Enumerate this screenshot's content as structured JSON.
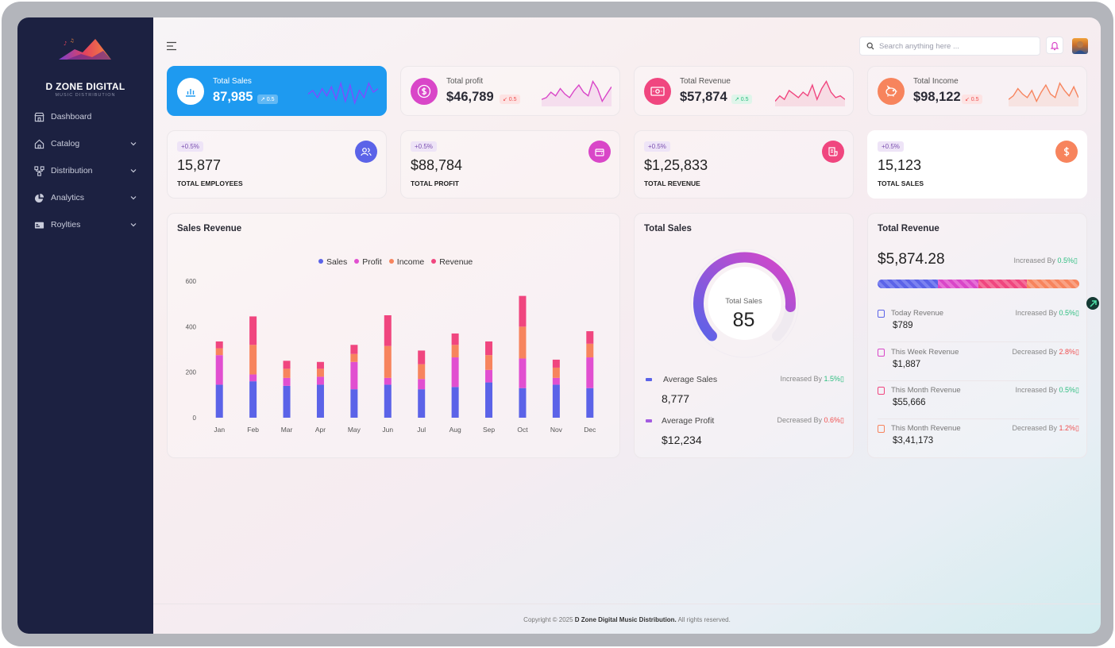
{
  "brand": {
    "title": "D ZONE DIGITAL",
    "subtitle": "MUSIC DISTRIBUTION"
  },
  "sidebar": {
    "items": [
      {
        "label": "Dashboard",
        "icon": "store-icon",
        "has_chevron": false
      },
      {
        "label": "Catalog",
        "icon": "home-icon",
        "has_chevron": true
      },
      {
        "label": "Distribution",
        "icon": "network-icon",
        "has_chevron": true
      },
      {
        "label": "Analytics",
        "icon": "pie-chart-icon",
        "has_chevron": true
      },
      {
        "label": "Roylties",
        "icon": "card-icon",
        "has_chevron": true
      }
    ]
  },
  "header": {
    "search_placeholder": "Search anything here ..."
  },
  "kpis": [
    {
      "label": "Total Sales",
      "value": "87,985",
      "badge": "↗ 0.5",
      "trend": "up",
      "icon": "bar-chart-icon",
      "accent": "#1e9af0",
      "spark": [
        18,
        14,
        22,
        12,
        20,
        10,
        24,
        6,
        26,
        8,
        28,
        14,
        22,
        6,
        16,
        12
      ]
    },
    {
      "label": "Total profit",
      "value": "$46,789",
      "badge": "↙ 0.5",
      "trend": "down",
      "icon": "dollar-icon",
      "accent": "#d946c8",
      "spark": [
        24,
        22,
        16,
        20,
        12,
        18,
        22,
        14,
        8,
        16,
        20,
        4,
        12,
        26,
        18,
        10
      ]
    },
    {
      "label": "Total Revenue",
      "value": "$57,874",
      "badge": "↗ 0.5",
      "trend": "up",
      "icon": "banknote-icon",
      "accent": "#f0467f",
      "spark": [
        26,
        20,
        24,
        14,
        18,
        22,
        16,
        20,
        8,
        24,
        12,
        4,
        16,
        22,
        20,
        24
      ]
    },
    {
      "label": "Total Income",
      "value": "$98,122",
      "badge": "↙ 0.5",
      "trend": "down",
      "icon": "piggy-bank-icon",
      "accent": "#f7845d",
      "spark": [
        24,
        20,
        12,
        18,
        22,
        14,
        26,
        16,
        8,
        18,
        22,
        6,
        14,
        20,
        10,
        22
      ]
    }
  ],
  "stats": [
    {
      "pill": "+0.5%",
      "value": "15,877",
      "label": "TOTAL EMPLOYEES",
      "icon": "users-icon",
      "accent": "#5b63e8"
    },
    {
      "pill": "+0.5%",
      "value": "$88,784",
      "label": "TOTAL PROFIT",
      "icon": "wallet-icon",
      "accent": "#d946c8"
    },
    {
      "pill": "+0.5%",
      "value": "$1,25,833",
      "label": "TOTAL REVENUE",
      "icon": "receipt-icon",
      "accent": "#f0467f"
    },
    {
      "pill": "+0.5%",
      "value": "15,123",
      "label": "TOTAL SALES",
      "icon": "dollar-icon",
      "accent": "#f7845d"
    }
  ],
  "sales_revenue": {
    "title": "Sales Revenue",
    "chart_data": {
      "type": "bar",
      "stacked": true,
      "categories": [
        "Jan",
        "Feb",
        "Mar",
        "Apr",
        "May",
        "Jun",
        "Jul",
        "Aug",
        "Sep",
        "Oct",
        "Nov",
        "Dec"
      ],
      "series": [
        {
          "name": "Sales",
          "color": "#5b63e8",
          "values": [
            145,
            160,
            140,
            145,
            125,
            145,
            125,
            135,
            155,
            130,
            145,
            130
          ]
        },
        {
          "name": "Profit",
          "color": "#e14fd0",
          "values": [
            130,
            30,
            35,
            35,
            120,
            30,
            45,
            130,
            55,
            130,
            30,
            135
          ]
        },
        {
          "name": "Income",
          "color": "#f7845d",
          "values": [
            30,
            130,
            40,
            35,
            35,
            140,
            65,
            55,
            65,
            140,
            45,
            60
          ]
        },
        {
          "name": "Revenue",
          "color": "#f0467f",
          "values": [
            30,
            125,
            35,
            30,
            40,
            135,
            60,
            50,
            60,
            135,
            35,
            55
          ]
        }
      ],
      "ylim": [
        0,
        600
      ],
      "yticks": [
        "600",
        "400",
        "200",
        "0"
      ],
      "legend_position": "top-center",
      "grid": false
    }
  },
  "total_sales": {
    "title": "Total Sales",
    "gauge_label": "Total Sales",
    "gauge_value": "85",
    "gauge_percent": 85,
    "rows": [
      {
        "name": "Average Sales",
        "value": "8,777",
        "status_text": "Increased By",
        "change": "1.5%",
        "trend": "up",
        "color": "#5b63e8"
      },
      {
        "name": "Average Profit",
        "value": "$12,234",
        "status_text": "Decreased By",
        "change": "0.6%",
        "trend": "down",
        "color": "#a35be0"
      }
    ]
  },
  "total_revenue": {
    "title": "Total Revenue",
    "value": "$5,874.28",
    "status_text": "Increased By",
    "change": "0.5%",
    "rows": [
      {
        "name": "Today Revenue",
        "value": "$789",
        "status_text": "Increased By",
        "change": "0.5%",
        "trend": "up",
        "color": "#5b63e8"
      },
      {
        "name": "This Week Revenue",
        "value": "$1,887",
        "status_text": "Decreased By",
        "change": "2.8%",
        "trend": "down",
        "color": "#d946c8"
      },
      {
        "name": "This Month Revenue",
        "value": "$55,666",
        "status_text": "Increased By",
        "change": "0.5%",
        "trend": "up",
        "color": "#f0467f"
      },
      {
        "name": "This Month Revenue",
        "value": "$3,41,173",
        "status_text": "Decreased By",
        "change": "1.2%",
        "trend": "down",
        "color": "#f7845d"
      }
    ]
  },
  "footer": {
    "prefix": "Copyright © 2025",
    "company": "D Zone Digital Music Distribution.",
    "suffix": "All rights reserved."
  }
}
